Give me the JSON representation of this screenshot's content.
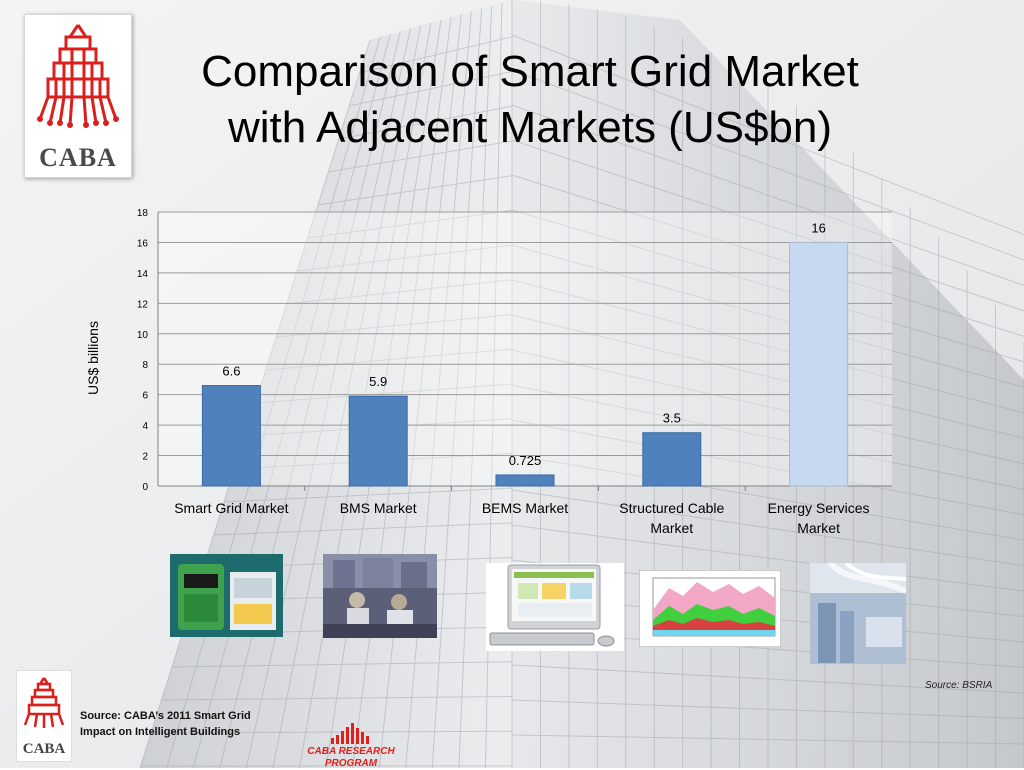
{
  "slide": {
    "title_line1": "Comparison of Smart Grid Market",
    "title_line2": "with Adjacent Markets (US$bn)",
    "logo_text": "CABA",
    "source_right": "Source: BSRIA",
    "source_left_line1": "Source: CABA’s 2011 Smart Grid",
    "source_left_line2": "Impact on Intelligent Buildings",
    "program_line1": "CABA RESEARCH",
    "program_line2": "PROGRAM",
    "colors": {
      "accent": "#e0201b",
      "bar": "#4f81bd",
      "bar_highlight": "#c6d9f1"
    }
  },
  "chart_data": {
    "type": "bar",
    "title": "",
    "xlabel": "",
    "ylabel": "US$ billions",
    "ylim": [
      0,
      18
    ],
    "yticks": [
      0,
      2,
      4,
      6,
      8,
      10,
      12,
      14,
      16,
      18
    ],
    "categories": [
      [
        "Smart Grid Market"
      ],
      [
        "BMS Market"
      ],
      [
        "BEMS Market"
      ],
      [
        "Structured Cable",
        "Market"
      ],
      [
        "Energy Services",
        "Market"
      ]
    ],
    "values": [
      6.6,
      5.9,
      0.725,
      3.5,
      16
    ],
    "value_labels": [
      "6.6",
      "5.9",
      "0.725",
      "3.5",
      "16"
    ],
    "highlighted_index": 4,
    "grid": true,
    "legend": "none"
  },
  "photos": [
    {
      "icon": "smart-meter-photo"
    },
    {
      "icon": "office-workers-photo"
    },
    {
      "icon": "bems-computer-photo"
    },
    {
      "icon": "energy-graph-photo"
    },
    {
      "icon": "structured-cable-photo"
    }
  ]
}
